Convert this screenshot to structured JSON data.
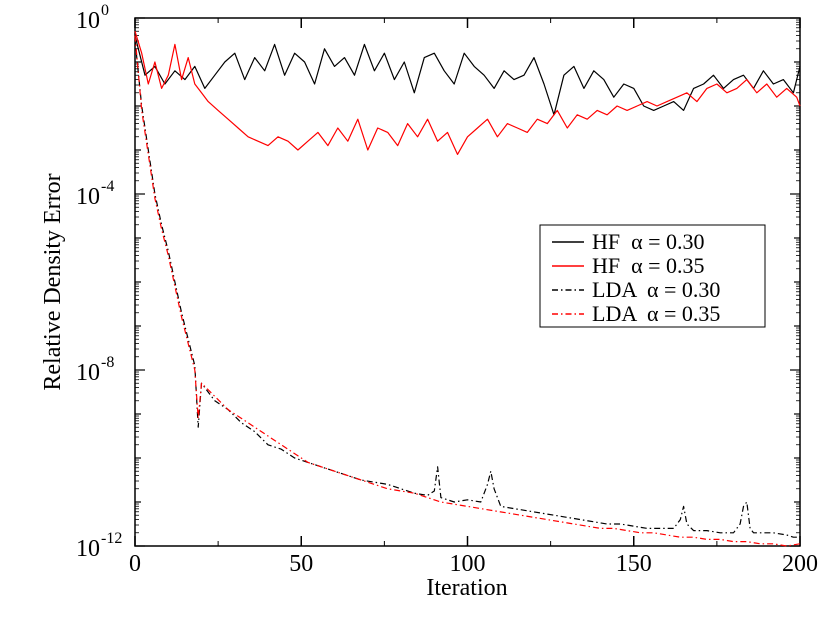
{
  "chart_data": {
    "type": "line",
    "title": "",
    "xlabel": "Iteration",
    "ylabel": "Relative Density Error",
    "xlim": [
      0,
      200
    ],
    "ylim_log10": [
      -12,
      0
    ],
    "y_scale": "log",
    "grid": false,
    "legend_position": "right-center",
    "x_ticks": [
      {
        "value": 0,
        "label": "0"
      },
      {
        "value": 50,
        "label": "50"
      },
      {
        "value": 100,
        "label": "100"
      },
      {
        "value": 150,
        "label": "150"
      },
      {
        "value": 200,
        "label": "200"
      }
    ],
    "y_ticks": [
      {
        "value": 0,
        "base": "10",
        "exp": "0"
      },
      {
        "value": -4,
        "base": "10",
        "exp": "-4"
      },
      {
        "value": -8,
        "base": "10",
        "exp": "-8"
      },
      {
        "value": -12,
        "base": "10",
        "exp": "-12"
      }
    ],
    "series": [
      {
        "name": "HF  α = 0.30",
        "color": "#000000",
        "style": "solid",
        "x": [
          0,
          3,
          6,
          9,
          12,
          15,
          18,
          21,
          24,
          27,
          30,
          33,
          36,
          39,
          42,
          45,
          48,
          51,
          54,
          57,
          60,
          63,
          66,
          69,
          72,
          75,
          78,
          81,
          84,
          87,
          90,
          93,
          96,
          99,
          102,
          105,
          108,
          111,
          114,
          117,
          120,
          123,
          126,
          129,
          132,
          135,
          138,
          141,
          144,
          147,
          150,
          153,
          156,
          159,
          162,
          165,
          168,
          171,
          174,
          177,
          180,
          183,
          186,
          189,
          192,
          195,
          198,
          200
        ],
        "log10_y": [
          -0.4,
          -1.3,
          -1.1,
          -1.5,
          -1.2,
          -1.4,
          -1.1,
          -1.6,
          -1.3,
          -1.0,
          -0.8,
          -1.4,
          -0.9,
          -1.2,
          -0.6,
          -1.3,
          -0.8,
          -1.0,
          -1.5,
          -0.7,
          -1.1,
          -0.9,
          -1.3,
          -0.6,
          -1.2,
          -0.8,
          -1.4,
          -1.0,
          -1.7,
          -0.9,
          -0.8,
          -1.2,
          -1.5,
          -0.8,
          -1.1,
          -1.3,
          -1.6,
          -1.2,
          -1.4,
          -1.3,
          -0.9,
          -1.5,
          -2.2,
          -1.3,
          -1.1,
          -1.6,
          -1.2,
          -1.4,
          -1.8,
          -1.5,
          -1.6,
          -2.0,
          -2.1,
          -2.0,
          -1.9,
          -2.1,
          -1.6,
          -1.5,
          -1.3,
          -1.6,
          -1.4,
          -1.3,
          -1.6,
          -1.2,
          -1.5,
          -1.4,
          -1.7,
          -1.1
        ]
      },
      {
        "name": "HF  α = 0.35",
        "color": "#ff0000",
        "style": "solid",
        "x": [
          0,
          2,
          4,
          6,
          8,
          10,
          12,
          14,
          16,
          18,
          20,
          22,
          25,
          28,
          31,
          34,
          37,
          40,
          43,
          46,
          49,
          52,
          55,
          58,
          61,
          64,
          67,
          70,
          73,
          76,
          79,
          82,
          85,
          88,
          91,
          94,
          97,
          100,
          103,
          106,
          109,
          112,
          115,
          118,
          121,
          124,
          127,
          130,
          133,
          136,
          139,
          142,
          145,
          148,
          151,
          154,
          157,
          160,
          163,
          166,
          169,
          172,
          175,
          178,
          181,
          184,
          187,
          190,
          193,
          196,
          199,
          200
        ],
        "log10_y": [
          -0.3,
          -0.8,
          -1.5,
          -1.0,
          -1.6,
          -1.3,
          -0.6,
          -1.4,
          -0.9,
          -1.5,
          -1.7,
          -1.9,
          -2.1,
          -2.3,
          -2.5,
          -2.7,
          -2.8,
          -2.9,
          -2.7,
          -2.8,
          -3.0,
          -2.8,
          -2.6,
          -2.9,
          -2.5,
          -2.8,
          -2.3,
          -3.0,
          -2.5,
          -2.6,
          -2.9,
          -2.4,
          -2.7,
          -2.3,
          -2.8,
          -2.6,
          -3.1,
          -2.7,
          -2.5,
          -2.3,
          -2.7,
          -2.4,
          -2.5,
          -2.6,
          -2.3,
          -2.4,
          -2.1,
          -2.5,
          -2.2,
          -2.3,
          -2.1,
          -2.2,
          -2.0,
          -2.1,
          -2.0,
          -1.9,
          -2.0,
          -1.9,
          -1.8,
          -1.7,
          -1.9,
          -1.6,
          -1.5,
          -1.7,
          -1.6,
          -1.4,
          -1.7,
          -1.5,
          -1.8,
          -1.6,
          -1.8,
          -2.0
        ]
      },
      {
        "name": "LDA  α = 0.30",
        "color": "#000000",
        "style": "dashdot",
        "x": [
          0,
          2,
          4,
          6,
          8,
          10,
          12,
          14,
          16,
          18,
          19,
          20,
          24,
          28,
          32,
          36,
          40,
          44,
          48,
          52,
          56,
          60,
          64,
          68,
          72,
          76,
          80,
          84,
          88,
          90,
          91,
          92,
          96,
          100,
          104,
          106,
          107,
          108,
          110,
          114,
          118,
          122,
          126,
          130,
          134,
          138,
          142,
          146,
          150,
          154,
          158,
          162,
          164,
          165,
          166,
          168,
          172,
          176,
          180,
          182,
          183,
          184,
          185,
          186,
          188,
          192,
          196,
          198,
          200
        ],
        "log10_y": [
          -0.5,
          -2.0,
          -3.0,
          -4.0,
          -4.7,
          -5.3,
          -6.0,
          -6.7,
          -7.3,
          -7.9,
          -9.3,
          -8.3,
          -8.7,
          -8.9,
          -9.2,
          -9.4,
          -9.7,
          -9.8,
          -10.0,
          -10.1,
          -10.2,
          -10.3,
          -10.4,
          -10.5,
          -10.55,
          -10.6,
          -10.7,
          -10.8,
          -10.85,
          -10.75,
          -10.2,
          -10.9,
          -11.0,
          -10.95,
          -11.0,
          -10.6,
          -10.3,
          -10.7,
          -11.1,
          -11.15,
          -11.2,
          -11.25,
          -11.3,
          -11.35,
          -11.4,
          -11.45,
          -11.5,
          -11.5,
          -11.55,
          -11.6,
          -11.6,
          -11.6,
          -11.4,
          -11.1,
          -11.5,
          -11.65,
          -11.65,
          -11.7,
          -11.7,
          -11.5,
          -11.1,
          -11.0,
          -11.6,
          -11.7,
          -11.7,
          -11.7,
          -11.75,
          -11.8,
          -11.8
        ]
      },
      {
        "name": "LDA  α = 0.35",
        "color": "#ff0000",
        "style": "dashdot",
        "x": [
          0,
          2,
          4,
          6,
          8,
          10,
          12,
          14,
          16,
          18,
          19,
          20,
          24,
          28,
          32,
          36,
          40,
          44,
          48,
          52,
          56,
          60,
          64,
          68,
          72,
          76,
          80,
          84,
          88,
          92,
          96,
          100,
          104,
          108,
          112,
          116,
          120,
          124,
          128,
          132,
          136,
          140,
          144,
          148,
          152,
          156,
          160,
          164,
          168,
          172,
          176,
          180,
          184,
          188,
          192,
          196,
          200
        ],
        "log10_y": [
          -0.4,
          -2.1,
          -3.1,
          -4.1,
          -4.8,
          -5.4,
          -6.1,
          -6.8,
          -7.4,
          -8.0,
          -9.1,
          -8.3,
          -8.6,
          -8.9,
          -9.1,
          -9.3,
          -9.5,
          -9.7,
          -9.9,
          -10.1,
          -10.2,
          -10.3,
          -10.4,
          -10.5,
          -10.6,
          -10.7,
          -10.75,
          -10.8,
          -10.9,
          -11.0,
          -11.05,
          -11.1,
          -11.15,
          -11.2,
          -11.25,
          -11.3,
          -11.35,
          -11.4,
          -11.45,
          -11.5,
          -11.55,
          -11.6,
          -11.6,
          -11.65,
          -11.7,
          -11.7,
          -11.75,
          -11.8,
          -11.8,
          -11.85,
          -11.85,
          -11.9,
          -11.9,
          -11.95,
          -11.95,
          -12.0,
          -11.95
        ]
      }
    ]
  }
}
